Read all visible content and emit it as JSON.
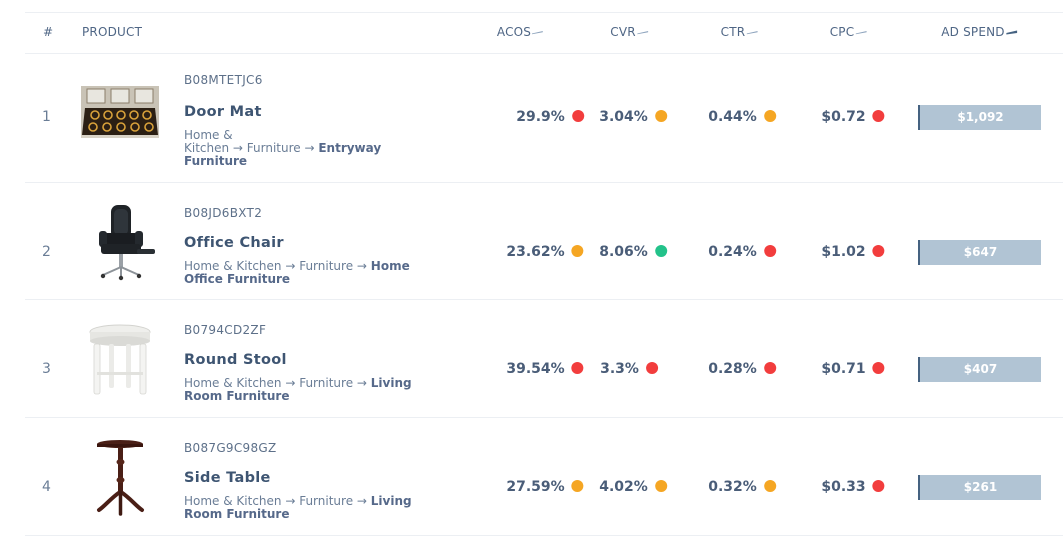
{
  "columns": {
    "index": "#",
    "product": "PRODUCT",
    "acos": "ACOS",
    "cvr": "CVR",
    "ctr": "CTR",
    "cpc": "CPC",
    "ad_spend": "AD SPEND"
  },
  "status_colors": {
    "red": "#f23d3d",
    "orange": "#f5a623",
    "green": "#23c28a"
  },
  "rows": [
    {
      "index": "1",
      "asin": "B08MTETJC6",
      "name": "Door Mat",
      "image_icon": "door-mat-icon",
      "path_line1": "Home &",
      "path_line2": "Kitchen → Furniture → ",
      "path_last1": "Entryway",
      "path_last2": "Furniture",
      "acos": "29.9%",
      "acos_status": "red",
      "cvr": "3.04%",
      "cvr_status": "orange",
      "ctr": "0.44%",
      "ctr_status": "orange",
      "cpc": "$0.72",
      "cpc_status": "red",
      "ad_spend": "$1,092"
    },
    {
      "index": "2",
      "asin": "B08JD6BXT2",
      "name": "Office Chair",
      "image_icon": "office-chair-icon",
      "path_line1": "Home & Kitchen → Furniture → ",
      "path_last1": "Home",
      "path_last2": "Office Furniture",
      "acos": "23.62%",
      "acos_status": "orange",
      "cvr": "8.06%",
      "cvr_status": "green",
      "ctr": "0.24%",
      "ctr_status": "red",
      "cpc": "$1.02",
      "cpc_status": "red",
      "ad_spend": "$647"
    },
    {
      "index": "3",
      "asin": "B0794CD2ZF",
      "name": "Round Stool",
      "image_icon": "round-stool-icon",
      "path_line1": "Home & Kitchen → Furniture → ",
      "path_last1": "Living",
      "path_last2": "Room Furniture",
      "acos": "39.54%",
      "acos_status": "red",
      "cvr": "3.3%",
      "cvr_status": "red",
      "ctr": "0.28%",
      "ctr_status": "red",
      "cpc": "$0.71",
      "cpc_status": "red",
      "ad_spend": "$407"
    },
    {
      "index": "4",
      "asin": "B087G9C98GZ",
      "name": "Side Table",
      "image_icon": "side-table-icon",
      "path_line1": "Home & Kitchen → Furniture → ",
      "path_last1": "Living",
      "path_last2": "Room Furniture",
      "acos": "27.59%",
      "acos_status": "orange",
      "cvr": "4.02%",
      "cvr_status": "orange",
      "ctr": "0.32%",
      "ctr_status": "orange",
      "cpc": "$0.33",
      "cpc_status": "red",
      "ad_spend": "$261"
    }
  ]
}
